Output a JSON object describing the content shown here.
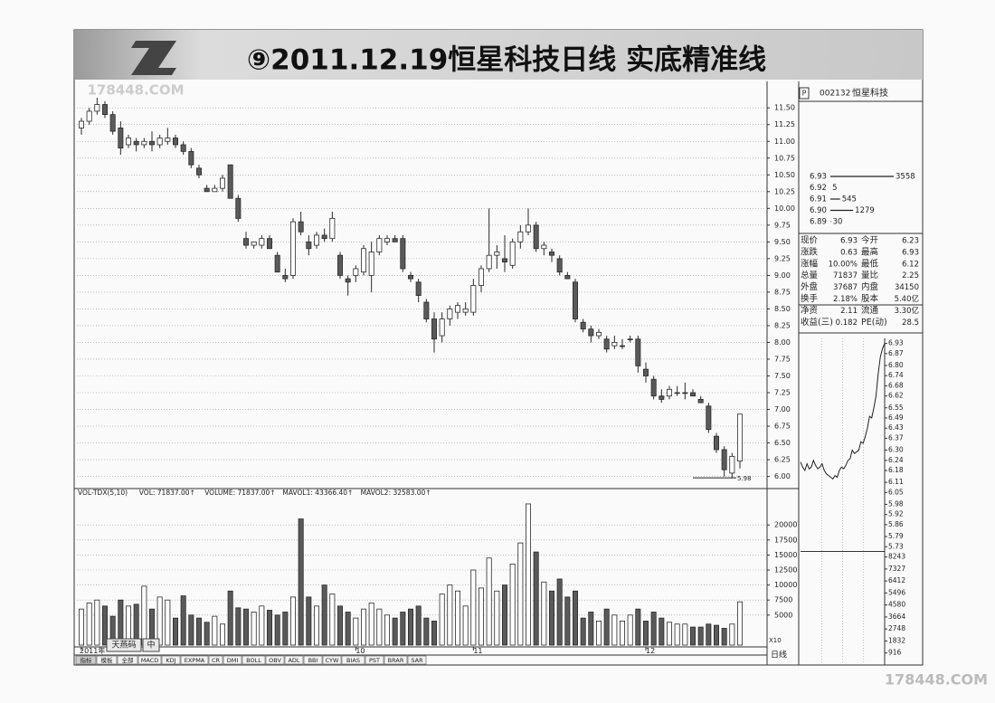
{
  "header": {
    "title": "⑨2011.12.19恒星科技日线 实底精准线"
  },
  "watermark": "178448.COM",
  "chart_data": [
    {
      "type": "candlestick",
      "open": [
        11.2,
        11.3,
        11.45,
        11.55,
        11.4,
        11.2,
        10.95,
        11.0,
        10.95,
        11.0,
        10.95,
        11.0,
        11.05,
        10.95,
        10.85,
        10.6,
        10.3,
        10.25,
        10.3,
        10.65,
        10.15,
        9.55,
        9.45,
        9.45,
        9.55,
        9.3,
        9.0,
        9.0,
        9.8,
        9.5,
        9.45,
        9.6,
        9.55,
        9.3,
        8.95,
        9.0,
        9.05,
        9.0,
        9.35,
        9.5,
        9.55,
        9.55,
        9.0,
        8.9,
        8.6,
        8.35,
        8.1,
        8.35,
        8.45,
        8.45,
        8.45,
        8.85,
        9.1,
        9.3,
        9.25,
        9.15,
        9.5,
        9.65,
        9.75,
        9.4,
        9.35,
        9.25,
        9.0,
        8.9,
        8.3,
        8.2,
        8.1,
        8.05,
        7.95,
        7.95,
        8.05,
        8.05,
        7.6,
        7.45,
        7.2,
        7.2,
        7.25,
        7.25,
        7.25,
        7.15,
        7.05,
        6.6,
        6.4,
        6.05,
        6.23
      ],
      "high": [
        11.35,
        11.5,
        11.65,
        11.6,
        11.45,
        11.3,
        11.1,
        11.05,
        11.05,
        11.15,
        11.1,
        11.2,
        11.1,
        11.0,
        10.9,
        10.65,
        10.35,
        10.35,
        10.5,
        10.65,
        10.2,
        9.65,
        9.5,
        9.6,
        9.6,
        9.35,
        9.1,
        9.85,
        9.95,
        9.6,
        9.65,
        9.7,
        9.95,
        9.35,
        9.0,
        9.15,
        9.45,
        9.5,
        9.6,
        9.6,
        9.6,
        9.6,
        9.05,
        8.95,
        8.65,
        8.45,
        8.45,
        8.55,
        8.6,
        8.6,
        8.95,
        9.15,
        10.0,
        9.45,
        9.6,
        9.55,
        9.75,
        10.0,
        9.8,
        9.5,
        9.4,
        9.3,
        9.05,
        8.95,
        8.35,
        8.25,
        8.2,
        8.1,
        8.1,
        8.05,
        8.1,
        8.1,
        7.7,
        7.5,
        7.3,
        7.35,
        7.35,
        7.4,
        7.3,
        7.2,
        7.1,
        6.65,
        6.45,
        6.35,
        6.93
      ],
      "low": [
        11.1,
        11.25,
        11.4,
        11.35,
        11.1,
        10.8,
        10.9,
        10.85,
        10.9,
        10.85,
        10.9,
        10.95,
        10.9,
        10.8,
        10.6,
        10.45,
        10.25,
        10.25,
        10.25,
        10.15,
        9.8,
        9.4,
        9.4,
        9.4,
        9.4,
        9.05,
        8.9,
        8.95,
        9.6,
        9.3,
        9.4,
        9.5,
        9.5,
        8.95,
        8.7,
        8.9,
        9.0,
        8.75,
        9.3,
        9.45,
        9.5,
        9.05,
        8.9,
        8.6,
        8.3,
        7.85,
        8.0,
        8.25,
        8.35,
        8.4,
        8.4,
        8.75,
        9.05,
        9.1,
        9.05,
        9.1,
        9.4,
        9.6,
        9.35,
        9.3,
        9.2,
        9.0,
        8.95,
        8.3,
        8.15,
        8.0,
        8.05,
        7.85,
        7.9,
        7.9,
        8.0,
        7.55,
        7.4,
        7.15,
        7.1,
        7.15,
        7.2,
        7.15,
        7.2,
        7.1,
        6.65,
        6.35,
        6.0,
        5.98,
        6.12
      ],
      "close": [
        11.3,
        11.45,
        11.55,
        11.4,
        11.15,
        10.9,
        11.05,
        10.95,
        11.0,
        10.95,
        11.05,
        11.05,
        10.95,
        10.85,
        10.65,
        10.5,
        10.25,
        10.3,
        10.45,
        10.15,
        9.85,
        9.45,
        9.5,
        9.55,
        9.4,
        9.05,
        8.95,
        9.8,
        9.65,
        9.4,
        9.6,
        9.55,
        9.85,
        9.0,
        8.9,
        9.1,
        9.4,
        9.35,
        9.55,
        9.55,
        9.5,
        9.1,
        8.95,
        8.7,
        8.35,
        8.05,
        8.35,
        8.5,
        8.55,
        8.5,
        8.85,
        9.1,
        9.3,
        9.35,
        9.2,
        9.5,
        9.65,
        9.75,
        9.4,
        9.45,
        9.3,
        9.05,
        8.95,
        8.35,
        8.2,
        8.1,
        8.15,
        7.9,
        8.0,
        7.95,
        8.05,
        7.65,
        7.5,
        7.2,
        7.15,
        7.3,
        7.25,
        7.25,
        7.2,
        7.1,
        6.7,
        6.4,
        6.1,
        6.3,
        6.93
      ],
      "up_color": "#ffffff",
      "down_color": "#5a5a5a",
      "edge_color": "#2a2a2a",
      "annotation": {
        "value": 5.98
      },
      "ylim": [
        5.9,
        11.8
      ],
      "yticks": [
        {
          "value": 6,
          "label": "6.00"
        },
        6.25,
        {
          "value": 6.5,
          "label": "6.50"
        },
        6.75,
        {
          "value": 7,
          "label": "7.00"
        },
        7.25,
        {
          "value": 7.5,
          "label": "7.50"
        },
        7.75,
        {
          "value": 8,
          "label": "8.00"
        },
        8.25,
        {
          "value": 8.5,
          "label": "8.50"
        },
        8.75,
        {
          "value": 9,
          "label": "9.00"
        },
        9.25,
        {
          "value": 9.5,
          "label": "9.50"
        },
        9.75,
        {
          "value": 10,
          "label": "10.00"
        },
        10.25,
        {
          "value": 10.5,
          "label": "10.50"
        },
        10.75,
        {
          "value": 11,
          "label": "11.00"
        },
        11.25,
        {
          "value": 11.5,
          "label": "11.50"
        }
      ],
      "grid": true
    },
    {
      "type": "bar",
      "indicator_labels": [
        "VOL-TDX(5,10)",
        "VOL: 71837.00↑",
        "VOLUME: 71837.00↑",
        "MAVOL1: 43366.40↑",
        "MAVOL2: 32583.00↑"
      ],
      "categories": [
        "2011年",
        null,
        null,
        null,
        null,
        null,
        null,
        null,
        null,
        null,
        null,
        null,
        null,
        null,
        null,
        null,
        null,
        null,
        null,
        null,
        null,
        null,
        null,
        null,
        null,
        null,
        null,
        null,
        null,
        null,
        null,
        null,
        null,
        null,
        null,
        "10",
        null,
        null,
        null,
        null,
        null,
        null,
        null,
        null,
        null,
        null,
        null,
        null,
        null,
        null,
        "11",
        null,
        null,
        null,
        null,
        null,
        null,
        null,
        null,
        null,
        null,
        null,
        null,
        null,
        null,
        null,
        null,
        null,
        null,
        null,
        null,
        null,
        "12",
        null,
        null,
        null,
        null,
        null,
        null,
        null,
        null,
        null,
        null,
        null,
        null
      ],
      "values": [
        6000,
        7000,
        7500,
        6500,
        4800,
        7500,
        6500,
        6800,
        9800,
        6000,
        8000,
        7500,
        4500,
        8200,
        5000,
        4500,
        3800,
        4800,
        3500,
        9000,
        6200,
        6000,
        5500,
        6500,
        5800,
        5000,
        5500,
        8000,
        21000,
        8000,
        6500,
        10000,
        8500,
        6500,
        5500,
        4500,
        6000,
        7000,
        6000,
        5000,
        4500,
        5500,
        6000,
        6500,
        4500,
        4000,
        8500,
        10000,
        9000,
        6500,
        12500,
        9500,
        14500,
        9000,
        10000,
        13500,
        17000,
        23500,
        15500,
        10500,
        9000,
        11000,
        8000,
        9000,
        4500,
        5500,
        4000,
        6000,
        5000,
        4000,
        5000,
        6000,
        4000,
        5500,
        4500,
        3800,
        3500,
        3500,
        3000,
        3000,
        3500,
        3300,
        2800,
        3500,
        7200
      ],
      "unit_label": "X10",
      "ylim": [
        0,
        25000
      ],
      "yticks": [
        5000,
        7500,
        10000,
        12500,
        15000,
        17500,
        20000
      ],
      "grid": true
    },
    {
      "type": "line",
      "values": [
        6.23,
        6.2,
        6.18,
        6.22,
        6.19,
        6.2,
        6.24,
        6.21,
        6.19,
        6.2,
        6.22,
        6.18,
        6.16,
        6.15,
        6.14,
        6.13,
        6.15,
        6.14,
        6.18,
        6.2,
        6.19,
        6.21,
        6.24,
        6.25,
        6.3,
        6.28,
        6.29,
        6.3,
        6.35,
        6.34,
        6.38,
        6.43,
        6.5,
        6.49,
        6.55,
        6.62,
        6.75,
        6.85,
        6.9,
        6.93
      ],
      "color": "#222222",
      "ylim": [
        5.71,
        6.96
      ],
      "yticks": [
        6.93,
        6.87,
        {
          "value": 6.8,
          "label": "6.80"
        },
        6.74,
        6.68,
        6.62,
        6.55,
        6.49,
        6.43,
        6.37,
        {
          "value": 6.3,
          "label": "6.30"
        },
        6.24,
        6.18,
        6.11,
        6.05,
        5.98,
        5.92,
        5.86,
        5.79,
        5.73
      ],
      "y2lim": [
        0,
        8560
      ],
      "y2ticks": [
        8243,
        7327,
        6412,
        5496,
        4580,
        3664,
        2748,
        1832,
        916
      ]
    }
  ],
  "quote": {
    "marker": "P",
    "code": "002132",
    "name": "恒星科技",
    "book": [
      {
        "price": "6.93",
        "volume": 3558
      },
      {
        "price": "6.92",
        "volume": 5
      },
      {
        "price": "6.91",
        "volume": 545
      },
      {
        "price": "6.90",
        "volume": 1279
      },
      {
        "price": "6.89",
        "volume": 30
      }
    ],
    "rows": [
      [
        "现价",
        "6.93",
        "今开",
        "6.23"
      ],
      [
        "涨跌",
        "0.63",
        "最高",
        "6.93"
      ],
      [
        "涨幅",
        "10.00%",
        "最低",
        "6.12"
      ],
      [
        "总量",
        "71837",
        "量比",
        "2.25"
      ],
      [
        "外盘",
        "37687",
        "内盘",
        "34150"
      ],
      [
        "换手",
        "2.18%",
        "股本",
        "5.40亿"
      ],
      [
        "净资",
        "2.11",
        "流通",
        "3.30亿"
      ],
      [
        "收益(三)",
        "0.182",
        "PE(动)",
        "28.5"
      ]
    ],
    "period": "日线"
  },
  "toolbar": {
    "buttons": [
      "天燕码",
      "中"
    ],
    "tabs": [
      "指标",
      "模板",
      "全部",
      "MACD",
      "KDJ",
      "EXPMA",
      "CR",
      "DMI",
      "BOLL",
      "OBV",
      "ADL",
      "BBI",
      "CYW",
      "BIAS",
      "PST",
      "BRAR",
      "SAR"
    ]
  }
}
